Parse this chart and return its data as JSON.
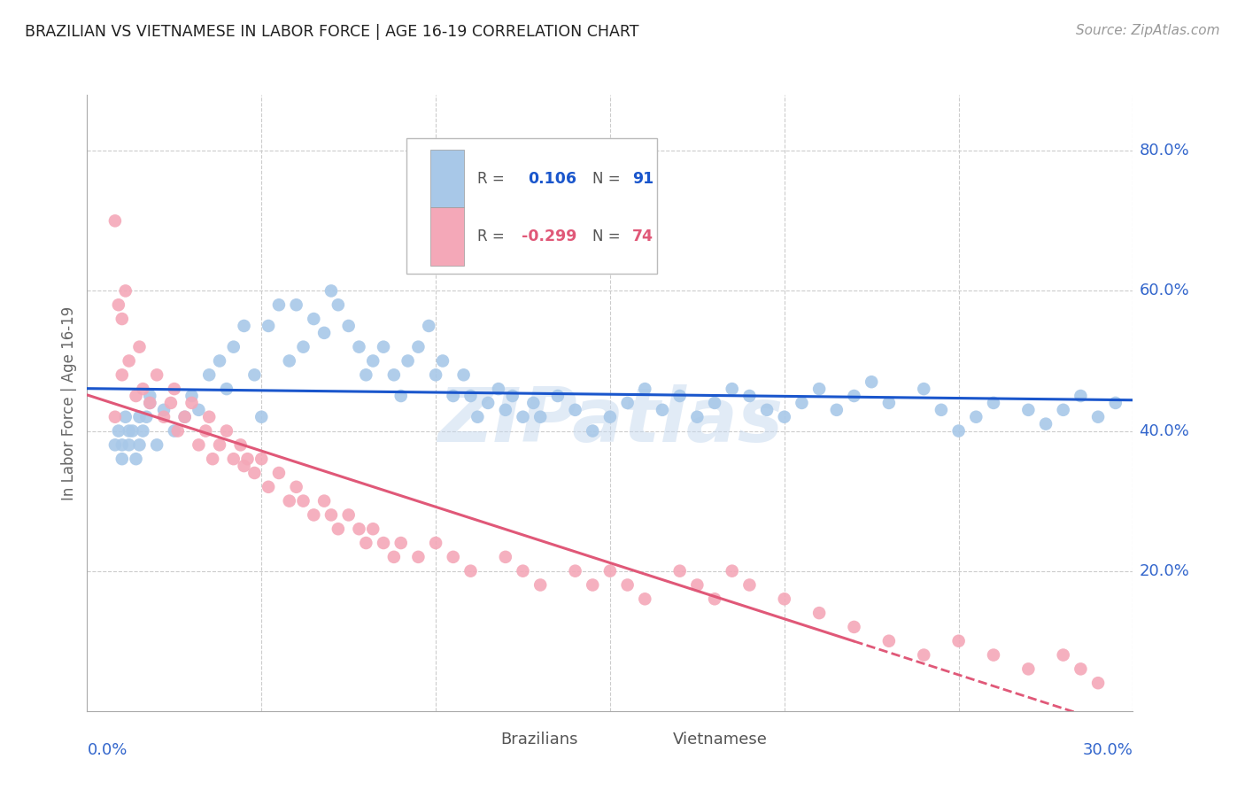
{
  "title": "BRAZILIAN VS VIETNAMESE IN LABOR FORCE | AGE 16-19 CORRELATION CHART",
  "source": "Source: ZipAtlas.com",
  "ylabel": "In Labor Force | Age 16-19",
  "watermark": "ZIPatlas",
  "blue_color": "#a8c8e8",
  "pink_color": "#f4a8b8",
  "blue_line_color": "#1a56cc",
  "pink_line_color": "#e05878",
  "title_color": "#222222",
  "axis_label_color": "#3366cc",
  "grid_color": "#cccccc",
  "background_color": "#ffffff",
  "xmin": 0.0,
  "xmax": 0.3,
  "ymin": 0.0,
  "ymax": 0.88,
  "yticks": [
    0.2,
    0.4,
    0.6,
    0.8
  ],
  "ytick_labels": [
    "20.0%",
    "40.0%",
    "60.0%",
    "80.0%"
  ],
  "xtick_left_label": "0.0%",
  "xtick_right_label": "30.0%",
  "legend_r_blue": "R =  0.106",
  "legend_n_blue": "N = 91",
  "legend_r_pink": "R = -0.299",
  "legend_n_pink": "N = 74",
  "blue_scatter_x": [
    0.01,
    0.012,
    0.015,
    0.018,
    0.02,
    0.022,
    0.025,
    0.028,
    0.03,
    0.032,
    0.035,
    0.038,
    0.04,
    0.042,
    0.045,
    0.048,
    0.05,
    0.052,
    0.055,
    0.058,
    0.06,
    0.062,
    0.065,
    0.068,
    0.07,
    0.072,
    0.075,
    0.078,
    0.08,
    0.082,
    0.085,
    0.088,
    0.09,
    0.092,
    0.095,
    0.098,
    0.1,
    0.102,
    0.105,
    0.108,
    0.11,
    0.112,
    0.115,
    0.118,
    0.12,
    0.122,
    0.125,
    0.128,
    0.13,
    0.135,
    0.14,
    0.145,
    0.15,
    0.155,
    0.16,
    0.165,
    0.17,
    0.175,
    0.18,
    0.185,
    0.19,
    0.195,
    0.2,
    0.205,
    0.21,
    0.215,
    0.22,
    0.225,
    0.23,
    0.24,
    0.245,
    0.25,
    0.255,
    0.26,
    0.27,
    0.275,
    0.28,
    0.285,
    0.29,
    0.295,
    0.008,
    0.009,
    0.01,
    0.011,
    0.012,
    0.013,
    0.014,
    0.015,
    0.016,
    0.017,
    0.018
  ],
  "blue_scatter_y": [
    0.38,
    0.4,
    0.42,
    0.45,
    0.38,
    0.43,
    0.4,
    0.42,
    0.45,
    0.43,
    0.48,
    0.5,
    0.46,
    0.52,
    0.55,
    0.48,
    0.42,
    0.55,
    0.58,
    0.5,
    0.58,
    0.52,
    0.56,
    0.54,
    0.6,
    0.58,
    0.55,
    0.52,
    0.48,
    0.5,
    0.52,
    0.48,
    0.45,
    0.5,
    0.52,
    0.55,
    0.48,
    0.5,
    0.45,
    0.48,
    0.45,
    0.42,
    0.44,
    0.46,
    0.43,
    0.45,
    0.42,
    0.44,
    0.42,
    0.45,
    0.43,
    0.4,
    0.42,
    0.44,
    0.46,
    0.43,
    0.45,
    0.42,
    0.44,
    0.46,
    0.45,
    0.43,
    0.42,
    0.44,
    0.46,
    0.43,
    0.45,
    0.47,
    0.44,
    0.46,
    0.43,
    0.4,
    0.42,
    0.44,
    0.43,
    0.41,
    0.43,
    0.45,
    0.42,
    0.44,
    0.38,
    0.4,
    0.36,
    0.42,
    0.38,
    0.4,
    0.36,
    0.38,
    0.4,
    0.42,
    0.44
  ],
  "pink_scatter_x": [
    0.008,
    0.01,
    0.012,
    0.014,
    0.015,
    0.016,
    0.018,
    0.02,
    0.022,
    0.024,
    0.025,
    0.026,
    0.028,
    0.03,
    0.032,
    0.034,
    0.035,
    0.036,
    0.038,
    0.04,
    0.042,
    0.044,
    0.045,
    0.046,
    0.048,
    0.05,
    0.052,
    0.055,
    0.058,
    0.06,
    0.062,
    0.065,
    0.068,
    0.07,
    0.072,
    0.075,
    0.078,
    0.08,
    0.082,
    0.085,
    0.088,
    0.09,
    0.095,
    0.1,
    0.105,
    0.11,
    0.12,
    0.125,
    0.13,
    0.14,
    0.145,
    0.15,
    0.155,
    0.16,
    0.17,
    0.175,
    0.18,
    0.185,
    0.19,
    0.2,
    0.21,
    0.22,
    0.23,
    0.24,
    0.25,
    0.26,
    0.27,
    0.28,
    0.285,
    0.29,
    0.008,
    0.009,
    0.01,
    0.011
  ],
  "pink_scatter_y": [
    0.42,
    0.48,
    0.5,
    0.45,
    0.52,
    0.46,
    0.44,
    0.48,
    0.42,
    0.44,
    0.46,
    0.4,
    0.42,
    0.44,
    0.38,
    0.4,
    0.42,
    0.36,
    0.38,
    0.4,
    0.36,
    0.38,
    0.35,
    0.36,
    0.34,
    0.36,
    0.32,
    0.34,
    0.3,
    0.32,
    0.3,
    0.28,
    0.3,
    0.28,
    0.26,
    0.28,
    0.26,
    0.24,
    0.26,
    0.24,
    0.22,
    0.24,
    0.22,
    0.24,
    0.22,
    0.2,
    0.22,
    0.2,
    0.18,
    0.2,
    0.18,
    0.2,
    0.18,
    0.16,
    0.2,
    0.18,
    0.16,
    0.2,
    0.18,
    0.16,
    0.14,
    0.12,
    0.1,
    0.08,
    0.1,
    0.08,
    0.06,
    0.08,
    0.06,
    0.04,
    0.7,
    0.58,
    0.56,
    0.6
  ]
}
